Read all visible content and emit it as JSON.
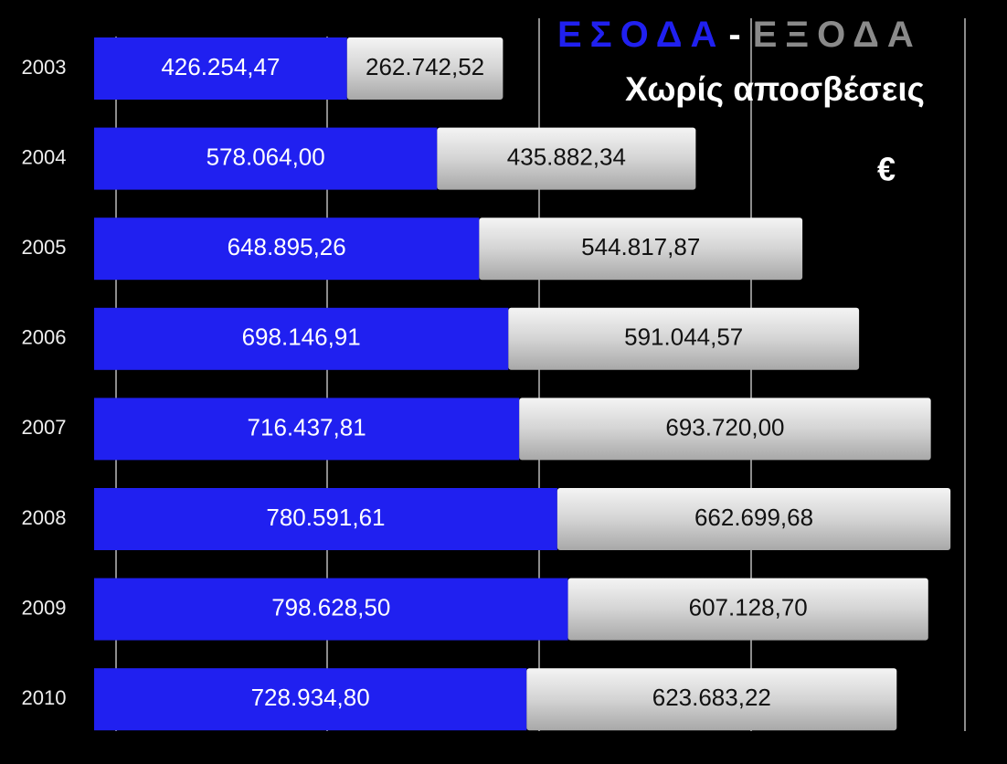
{
  "chart_data": {
    "type": "stacked-bar-horizontal",
    "title_separator": "-",
    "subtitle": "Χωρίς αποσβέσεις",
    "annotation": "€",
    "categories": [
      "2003",
      "2004",
      "2005",
      "2006",
      "2007",
      "2008",
      "2009",
      "2010"
    ],
    "series": [
      {
        "name": "ΕΣΟΔΑ",
        "color": "#2020f0",
        "values": [
          426254.47,
          578064.0,
          648895.26,
          698146.91,
          716437.81,
          780591.61,
          798628.5,
          728934.8
        ],
        "value_labels": [
          "426.254,47",
          "578.064,00",
          "648.895,26",
          "698.146,91",
          "716.437,81",
          "780.591,61",
          "798.628,50",
          "728.934,80"
        ]
      },
      {
        "name": "ΕΞΟΔΑ",
        "color": "#c8c8c8",
        "values": [
          262742.52,
          435882.34,
          544817.87,
          591044.57,
          693720.0,
          662699.68,
          607128.7,
          623683.22
        ],
        "value_labels": [
          "262.742,52",
          "435.882,34",
          "544.817,87",
          "591.044,57",
          "693.720,00",
          "662.699,68",
          "607.128,70",
          "623.683,22"
        ]
      }
    ],
    "xlim": [
      0,
      1500000
    ]
  }
}
